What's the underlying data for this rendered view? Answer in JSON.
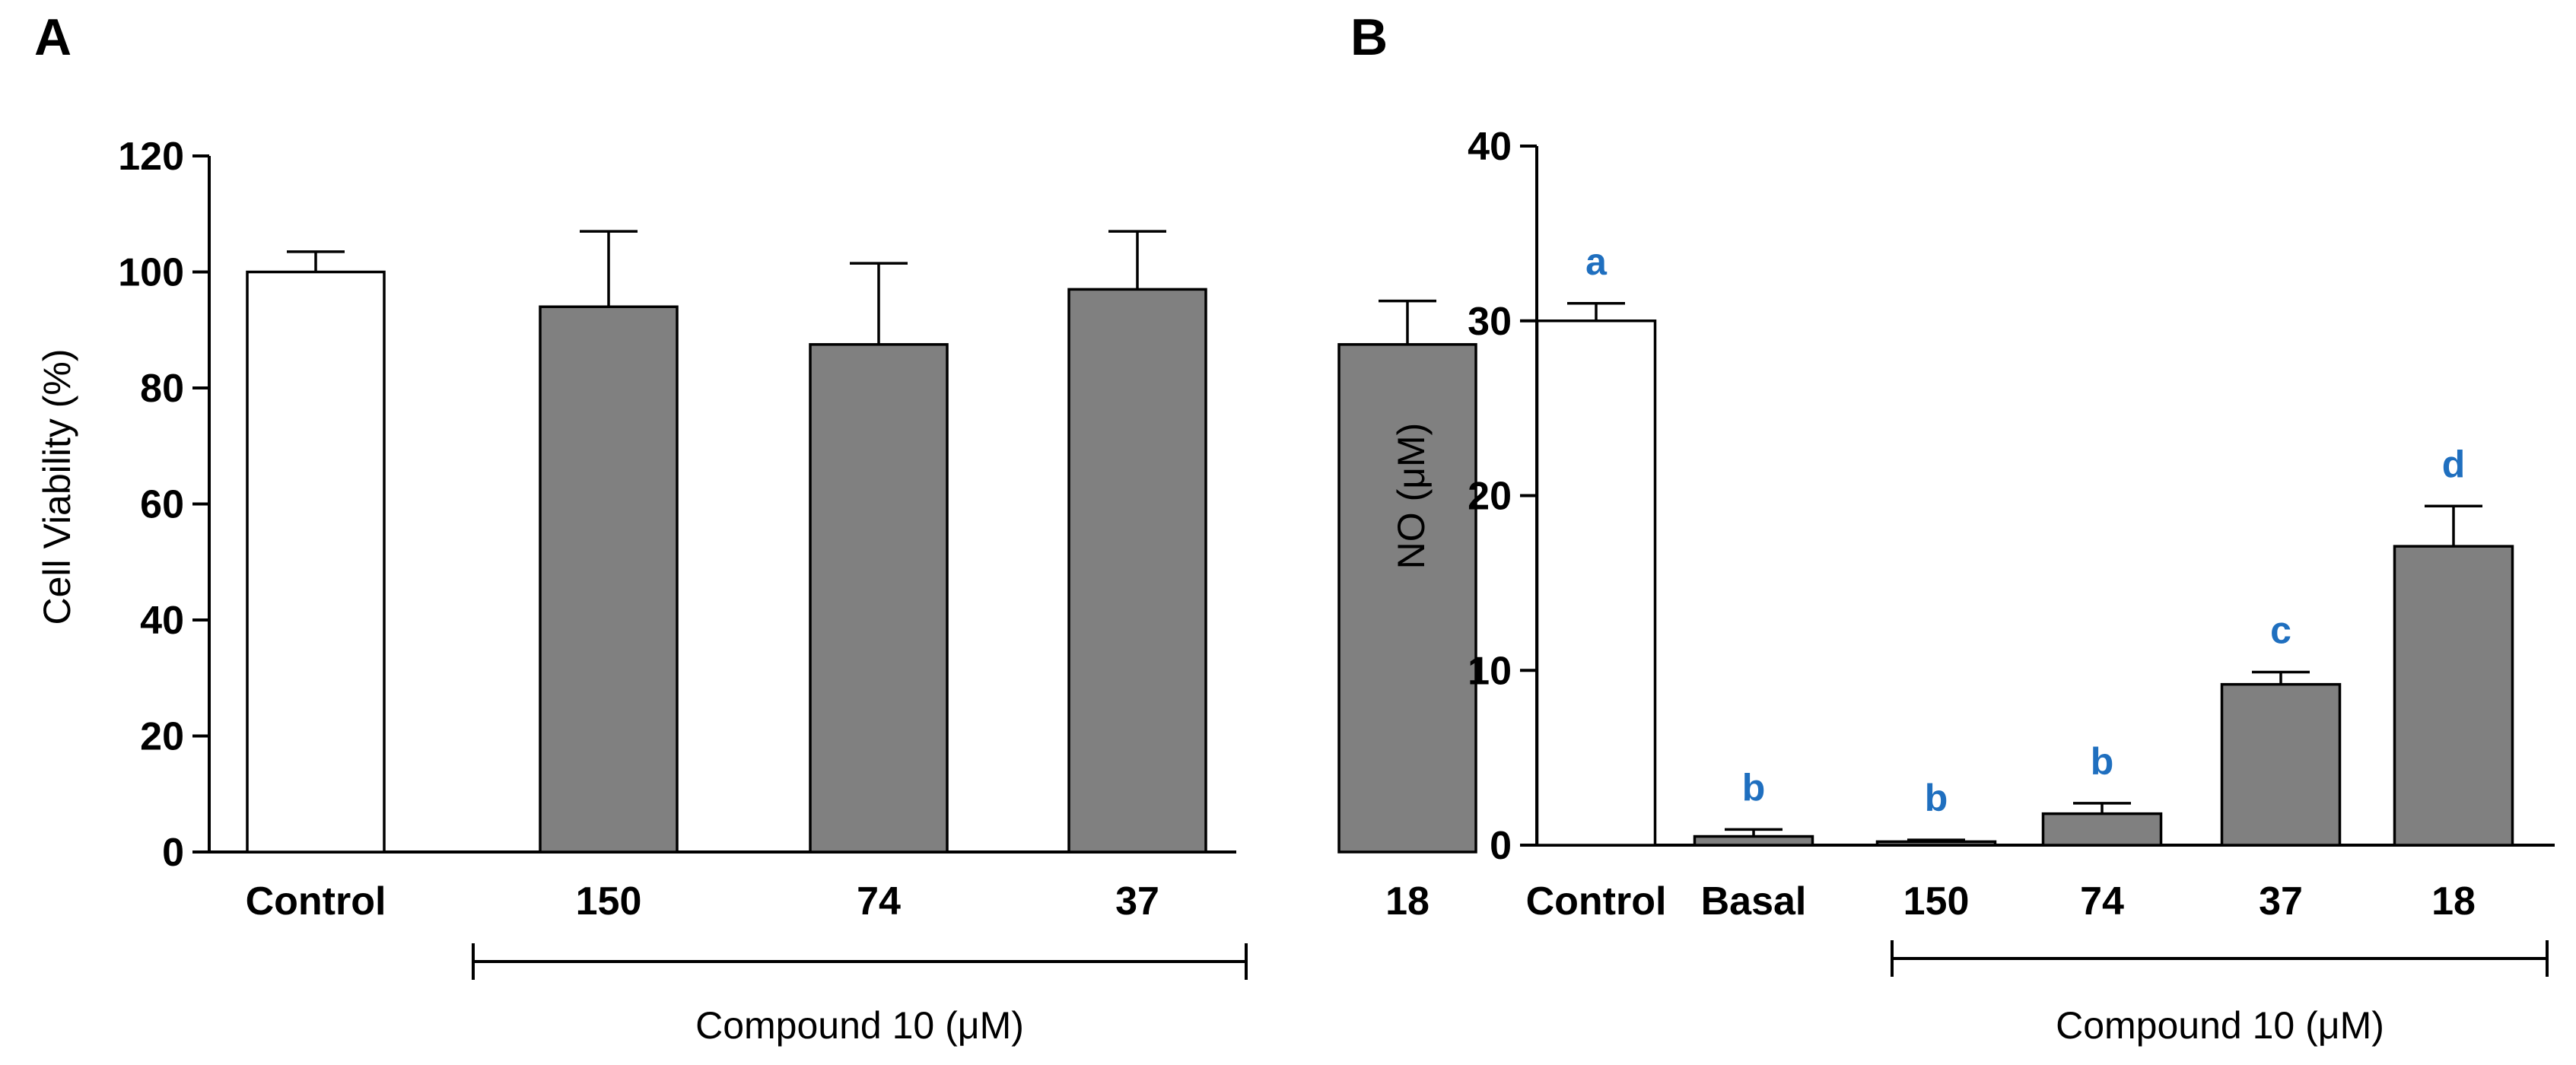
{
  "chart_data": [
    {
      "panel": "A",
      "type": "bar",
      "categories": [
        "Control",
        "150",
        "74",
        "37",
        "18"
      ],
      "values": [
        100,
        94,
        87.5,
        97,
        87.5
      ],
      "errors": [
        3.5,
        13,
        14,
        10,
        7.5
      ],
      "fills": [
        "#ffffff",
        "#808080",
        "#808080",
        "#808080",
        "#808080"
      ],
      "ylabel": "Cell Viability (%)",
      "ylim": [
        0,
        120
      ],
      "yticks": [
        "0",
        "20",
        "40",
        "60",
        "80",
        "100",
        "120"
      ],
      "group_label": "Compound 10 (μM)",
      "significance": []
    },
    {
      "panel": "B",
      "type": "bar",
      "categories": [
        "Control",
        "Basal",
        "150",
        "74",
        "37",
        "18"
      ],
      "values": [
        30,
        0.5,
        0.2,
        1.8,
        9.2,
        17.1
      ],
      "errors": [
        1,
        0.4,
        0.1,
        0.6,
        0.7,
        2.3
      ],
      "fills": [
        "#ffffff",
        "#808080",
        "#808080",
        "#808080",
        "#808080",
        "#808080"
      ],
      "ylabel": "NO (μM)",
      "ylim": [
        0,
        40
      ],
      "yticks": [
        "0",
        "10",
        "20",
        "30",
        "40"
      ],
      "group_label": "Compound 10 (μM)",
      "significance": [
        "a",
        "b",
        "b",
        "b",
        "c",
        "d"
      ]
    }
  ]
}
